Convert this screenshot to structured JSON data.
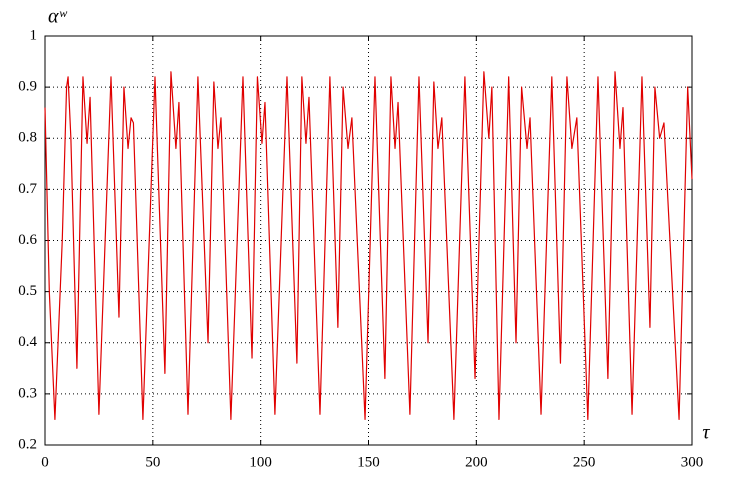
{
  "chart_data": {
    "type": "line",
    "y_label": "αʷ",
    "x_label": "τ",
    "xlim": [
      0,
      300
    ],
    "ylim": [
      0.2,
      1
    ],
    "xticks": [
      0,
      50,
      100,
      150,
      200,
      250,
      300
    ],
    "yticks": [
      0.2,
      0.3,
      0.4,
      0.5,
      0.6,
      0.7,
      0.8,
      0.9,
      1
    ],
    "grid": true,
    "series": [
      {
        "color": "#e00000",
        "x": [
          0,
          2,
          4.6,
          8,
          10,
          10.7,
          12,
          14.8,
          17.6,
          19.5,
          20.9,
          25,
          30.6,
          34.3,
          36.6,
          38.5,
          39.9,
          41,
          45.4,
          51,
          55.6,
          58.4,
          60.7,
          62.1,
          66.3,
          70.9,
          75.6,
          78.3,
          80.2,
          81.6,
          86.2,
          91.8,
          96,
          98.5,
          100.6,
          102,
          106.6,
          112.2,
          116.8,
          119.1,
          121,
          122.4,
          127.5,
          132.1,
          135.8,
          138.2,
          140.5,
          142.3,
          148.4,
          153,
          157.6,
          160.4,
          162.3,
          163.7,
          169.2,
          173.4,
          177.6,
          180.3,
          182.2,
          184,
          189.6,
          194.7,
          199.4,
          203.5,
          205.8,
          207.2,
          210.5,
          215,
          218.4,
          221,
          223.5,
          224.9,
          230,
          235,
          239,
          242,
          244.3,
          246.6,
          251.7,
          256.4,
          261,
          264.3,
          266.6,
          268,
          272.2,
          276.8,
          280.5,
          282.8,
          285,
          287,
          294,
          298,
          300
        ],
        "values": [
          0.86,
          0.5,
          0.25,
          0.6,
          0.9,
          0.92,
          0.8,
          0.35,
          0.92,
          0.79,
          0.88,
          0.26,
          0.92,
          0.45,
          0.9,
          0.78,
          0.84,
          0.83,
          0.25,
          0.92,
          0.34,
          0.93,
          0.78,
          0.87,
          0.26,
          0.92,
          0.4,
          0.91,
          0.78,
          0.84,
          0.25,
          0.92,
          0.37,
          0.92,
          0.79,
          0.87,
          0.26,
          0.92,
          0.36,
          0.92,
          0.79,
          0.88,
          0.26,
          0.92,
          0.43,
          0.9,
          0.78,
          0.84,
          0.25,
          0.92,
          0.33,
          0.92,
          0.78,
          0.87,
          0.26,
          0.92,
          0.4,
          0.91,
          0.78,
          0.84,
          0.25,
          0.92,
          0.33,
          0.93,
          0.8,
          0.9,
          0.25,
          0.92,
          0.4,
          0.9,
          0.78,
          0.84,
          0.26,
          0.92,
          0.36,
          0.92,
          0.78,
          0.84,
          0.25,
          0.92,
          0.33,
          0.93,
          0.78,
          0.86,
          0.26,
          0.92,
          0.43,
          0.9,
          0.8,
          0.83,
          0.25,
          0.9,
          0.72
        ]
      }
    ]
  }
}
